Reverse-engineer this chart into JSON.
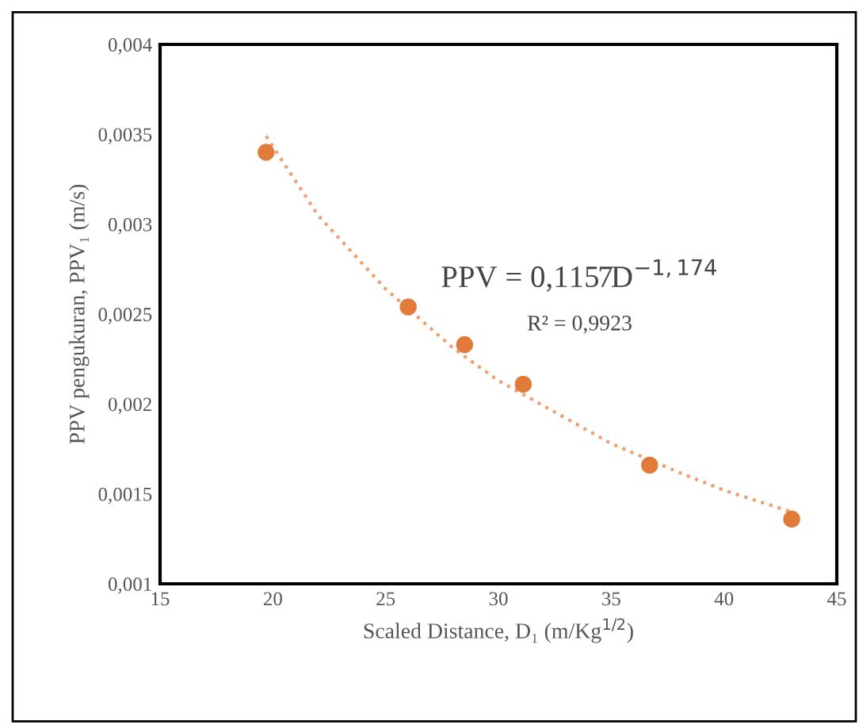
{
  "chart_data": {
    "type": "scatter",
    "xlabel": "Scaled Distance, D₁ (m/Kg$^{1/2}$)",
    "ylabel": "PPV pengukuran, PPV₁ (m/s)",
    "x": [
      19.7,
      26.0,
      28.5,
      31.1,
      36.7,
      43.0
    ],
    "series": [
      {
        "color": "#e07b39",
        "values": [
          0.0034,
          0.00254,
          0.00233,
          0.00211,
          0.00166,
          0.00136
        ]
      },
      {
        "type": "line",
        "color": "#f0a070",
        "line_style": "dotted",
        "marker": "none",
        "x": [
          19.7,
          22,
          25,
          28,
          30,
          33,
          35,
          38,
          40,
          43
        ],
        "values": [
          0.00349,
          0.00305,
          0.00264,
          0.00231,
          0.00213,
          0.00192,
          0.00178,
          0.00162,
          0.00152,
          0.0014
        ]
      }
    ],
    "xlim": [
      15,
      45
    ],
    "xticks": [
      15,
      20,
      25,
      30,
      35,
      40,
      45
    ],
    "ylim": [
      0.001,
      0.004
    ],
    "yticks": [
      {
        "value": 0.001,
        "label": "0,001"
      },
      {
        "value": 0.0015,
        "label": "0,0015"
      },
      {
        "value": 0.002,
        "label": "0,002"
      },
      {
        "value": 0.0025,
        "label": "0,0025"
      },
      {
        "value": 0.003,
        "label": "0,003"
      },
      {
        "value": 0.0035,
        "label": "0,0035"
      },
      {
        "value": 0.004,
        "label": "0,004"
      }
    ],
    "annotations": [
      "PPV = 0,1157D$^{−1,174}$",
      "R² = 0,9923"
    ],
    "marker": "circle",
    "grid": false,
    "legend": false
  }
}
